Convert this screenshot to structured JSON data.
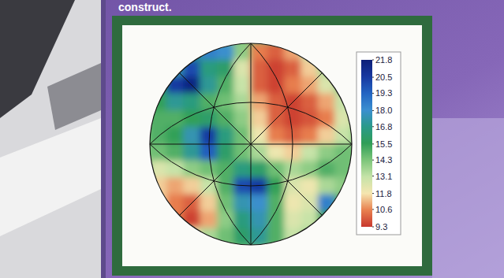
{
  "header": {
    "text": "construct."
  },
  "chart_data": {
    "type": "heatmap",
    "grid": true,
    "tick_labels": false,
    "cells": [
      [
        null,
        null,
        16.5,
        18.5,
        18.0,
        14,
        10.5,
        10.0,
        11.0,
        13.0,
        null,
        null
      ],
      [
        null,
        17.5,
        20,
        16.5,
        16,
        12.5,
        10,
        9.5,
        10.0,
        11.5,
        13.5,
        null
      ],
      [
        16,
        20.5,
        21.5,
        17,
        15,
        13,
        10,
        9.5,
        10.5,
        11,
        12.5,
        14
      ],
      [
        15.5,
        17,
        16.5,
        15,
        14.5,
        13.5,
        11,
        10,
        9.5,
        10,
        11,
        13
      ],
      [
        15,
        15,
        15.5,
        16,
        15,
        14,
        11.5,
        10,
        9.5,
        9.8,
        10.5,
        12.5
      ],
      [
        15,
        15.5,
        17.5,
        20.5,
        16.5,
        14.5,
        12,
        10.5,
        10,
        10.5,
        11.5,
        13
      ],
      [
        14.5,
        15,
        17,
        19.5,
        16,
        14.5,
        13.5,
        12,
        11.5,
        13,
        14,
        14.5
      ],
      [
        12.5,
        13,
        14,
        14.5,
        15,
        16.5,
        16,
        14.5,
        13.5,
        14,
        15,
        14.5
      ],
      [
        11.5,
        11,
        11.5,
        13,
        15,
        20,
        20.5,
        15.5,
        12.5,
        12,
        13.5,
        14
      ],
      [
        11.5,
        10.5,
        10,
        11.5,
        14.5,
        17.5,
        18,
        15,
        12,
        12.5,
        18.5,
        15
      ],
      [
        null,
        10.5,
        9.5,
        11,
        14,
        16.5,
        17.5,
        15,
        12.5,
        13,
        15.5,
        null
      ],
      [
        null,
        null,
        12,
        13.5,
        14.5,
        16,
        17,
        15,
        13,
        13.5,
        null,
        null
      ]
    ],
    "colorbar": {
      "range": [
        9.3,
        21.8
      ],
      "ticks": [
        21.8,
        20.5,
        19.3,
        {
          "value": 18,
          "label": "18.0"
        },
        16.8,
        15.5,
        14.3,
        13.1,
        11.8,
        10.6,
        9.3
      ]
    }
  }
}
